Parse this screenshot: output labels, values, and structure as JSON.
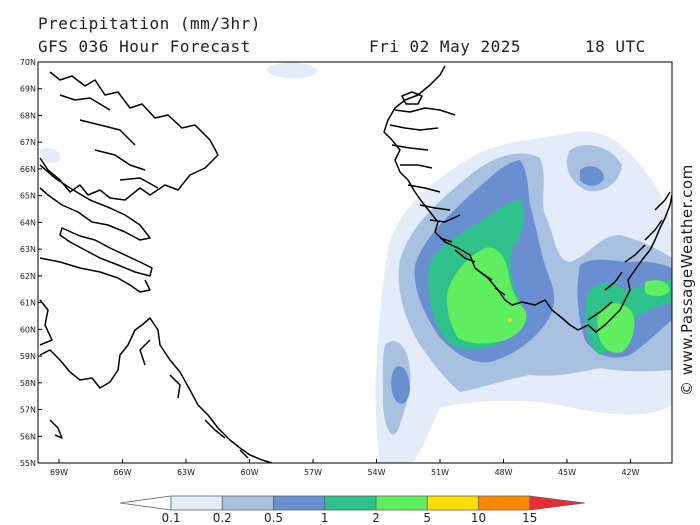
{
  "header": {
    "title": "Precipitation (mm/3hr)",
    "subtitle": "GFS 036 Hour Forecast",
    "date": "Fri 02 May 2025",
    "time": "18 UTC"
  },
  "map": {
    "latitude_labels": [
      "70N",
      "69N",
      "68N",
      "67N",
      "66N",
      "65N",
      "64N",
      "63N",
      "62N",
      "61N",
      "60N",
      "59N",
      "58N",
      "57N",
      "56N",
      "55N"
    ],
    "longitude_labels": [
      "69W",
      "66W",
      "63W",
      "60W",
      "57W",
      "54W",
      "51W",
      "48W",
      "45W",
      "42W"
    ],
    "region_labels": []
  },
  "legend": {
    "thresholds": [
      "0.1",
      "0.2",
      "0.5",
      "1",
      "2",
      "5",
      "10",
      "15"
    ],
    "colors": [
      "#ffffff",
      "#e3ecf8",
      "#a9c1e1",
      "#6a8fd1",
      "#2fc18c",
      "#5fee5f",
      "#ffe000",
      "#ff8a00",
      "#ee2a35"
    ]
  },
  "watermark": "© www.PassageWeather.com"
}
